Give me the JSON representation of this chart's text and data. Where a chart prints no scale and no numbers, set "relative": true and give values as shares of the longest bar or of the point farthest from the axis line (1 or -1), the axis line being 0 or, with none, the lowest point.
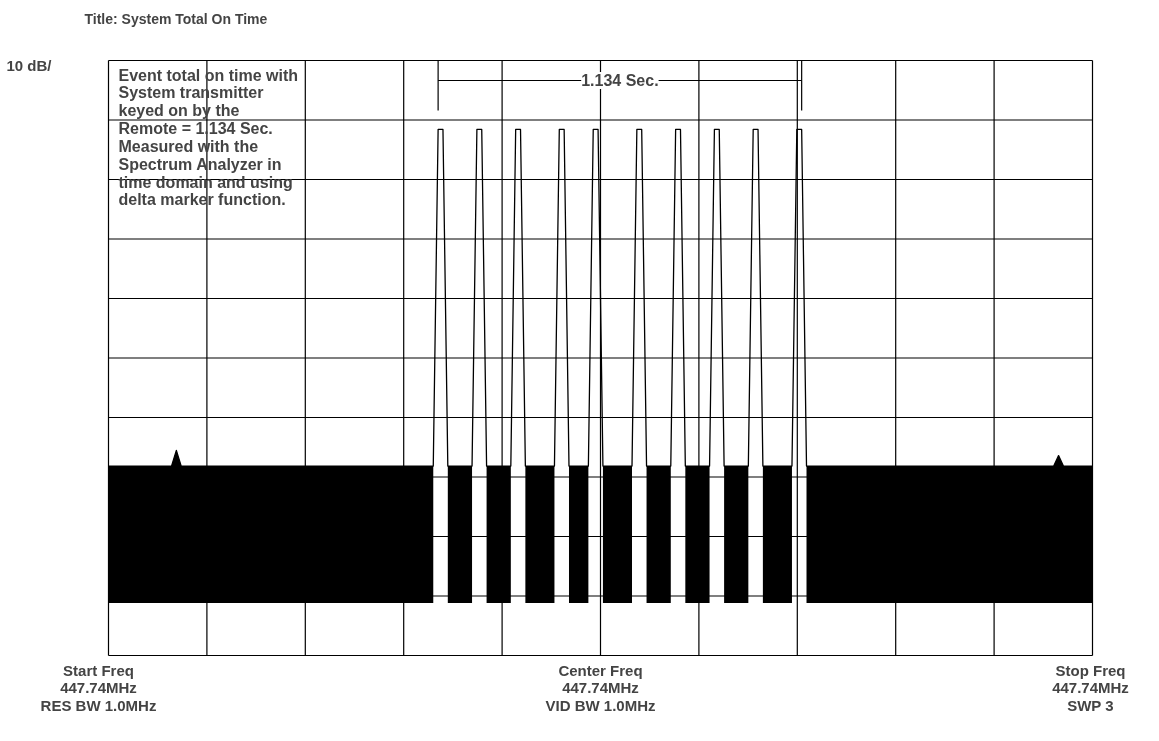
{
  "chart_data": {
    "type": "line",
    "relative": true,
    "title": "Title: System Total On Time",
    "grid": true,
    "marker": "none",
    "line_style": "solid",
    "categories": [
      null,
      null,
      null,
      null,
      null,
      null,
      null,
      null,
      null,
      null,
      null,
      null,
      null,
      null,
      null,
      null,
      null,
      null,
      null,
      null,
      null,
      null,
      null,
      null,
      null,
      null,
      null,
      null,
      null,
      null,
      null,
      null,
      null,
      null,
      null,
      null,
      null,
      null,
      null,
      null,
      null,
      null,
      null,
      null,
      null,
      null,
      null,
      null,
      null,
      null,
      null,
      null,
      null,
      null,
      null,
      null,
      null,
      null,
      null,
      null,
      null,
      null,
      null,
      null,
      null,
      null,
      null,
      null,
      null,
      null,
      null,
      null,
      null,
      null,
      null,
      null,
      null,
      null,
      null,
      null,
      null,
      null,
      null,
      null,
      null,
      null,
      null,
      null,
      null,
      null,
      null,
      null,
      null,
      null,
      null,
      null,
      null,
      null,
      null,
      null,
      null,
      null,
      null,
      null,
      null,
      null,
      null,
      null,
      null,
      null,
      null,
      null,
      null,
      null,
      null,
      null,
      null,
      null,
      null,
      null,
      null,
      null,
      null,
      null,
      null,
      null,
      null,
      null,
      null,
      null,
      null,
      null,
      null,
      null,
      null,
      null,
      null,
      null,
      null,
      null,
      null,
      null,
      null,
      null,
      null,
      null,
      null,
      null,
      null,
      null,
      null,
      null,
      null,
      null,
      null,
      null,
      null,
      null,
      null,
      null,
      null,
      null,
      null,
      null,
      null,
      null,
      null,
      null,
      null,
      null,
      null,
      null,
      null,
      null,
      null,
      null,
      null,
      null,
      null,
      null,
      null,
      null,
      null,
      null,
      null,
      null,
      null,
      null,
      null,
      null,
      null,
      null,
      null,
      null,
      null,
      null,
      null,
      null,
      null,
      null,
      null,
      null,
      null,
      null
    ],
    "series": [
      {
        "color": "#000000",
        "values": [
          0.36,
          0.36,
          0.36,
          0.36,
          0.36,
          0.36,
          0.36,
          0.36,
          0.36,
          0.36,
          0.36,
          0.36,
          0.36,
          0.36,
          0.39,
          0.36,
          0.36,
          0.36,
          0.36,
          0.36,
          0.36,
          0.36,
          0.36,
          0.36,
          0.36,
          0.36,
          0.36,
          0.36,
          0.36,
          0.36,
          0.36,
          0.36,
          0.36,
          0.36,
          0.36,
          0.36,
          0.36,
          0.36,
          0.36,
          0.36,
          0.36,
          0.36,
          0.36,
          0.36,
          0.36,
          0.36,
          0.36,
          0.36,
          0.36,
          0.36,
          0.36,
          0.36,
          0.36,
          0.36,
          0.36,
          0.36,
          0.36,
          0.36,
          0.36,
          0.36,
          0.36,
          0.36,
          0.36,
          0.36,
          0.36,
          0.36,
          0.36,
          0.36,
          1,
          1,
          0.36,
          0.36,
          0.36,
          0.36,
          0.36,
          0.36,
          1,
          1,
          0.36,
          0.36,
          0.36,
          0.36,
          0.36,
          0.36,
          1,
          1,
          0.36,
          0.36,
          0.36,
          0.36,
          0.36,
          0.36,
          0.36,
          1,
          1,
          0.36,
          0.36,
          0.36,
          0.36,
          0.36,
          1,
          1,
          0.36,
          0.36,
          0.36,
          0.36,
          0.36,
          0.36,
          0.36,
          1,
          1,
          0.36,
          0.36,
          0.36,
          0.36,
          0.36,
          0.36,
          1,
          1,
          0.36,
          0.36,
          0.36,
          0.36,
          0.36,
          0.36,
          1,
          1,
          0.36,
          0.36,
          0.36,
          0.36,
          0.36,
          0.36,
          1,
          1,
          0.36,
          0.36,
          0.36,
          0.36,
          0.36,
          0.36,
          0.36,
          1,
          1,
          0.36,
          0.36,
          0.36,
          0.36,
          0.36,
          0.36,
          0.36,
          0.36,
          0.36,
          0.36,
          0.36,
          0.36,
          0.36,
          0.36,
          0.36,
          0.36,
          0.36,
          0.36,
          0.36,
          0.36,
          0.36,
          0.36,
          0.36,
          0.36,
          0.36,
          0.36,
          0.36,
          0.36,
          0.36,
          0.36,
          0.36,
          0.36,
          0.36,
          0.36,
          0.36,
          0.36,
          0.36,
          0.36,
          0.36,
          0.36,
          0.36,
          0.36,
          0.36,
          0.36,
          0.36,
          0.36,
          0.36,
          0.36,
          0.36,
          0.36,
          0.36,
          0.36,
          0.38,
          0.36,
          0.36,
          0.36,
          0.36,
          0.36,
          0.36,
          0.36
        ],
        "upper": [
          0.36,
          0.36,
          0.36,
          0.36,
          0.36,
          0.36,
          0.36,
          0.36,
          0.36,
          0.36,
          0.36,
          0.36,
          0.36,
          0.36,
          0.39,
          0.36,
          0.36,
          0.36,
          0.36,
          0.36,
          0.36,
          0.36,
          0.36,
          0.36,
          0.36,
          0.36,
          0.36,
          0.36,
          0.36,
          0.36,
          0.36,
          0.36,
          0.36,
          0.36,
          0.36,
          0.36,
          0.36,
          0.36,
          0.36,
          0.36,
          0.36,
          0.36,
          0.36,
          0.36,
          0.36,
          0.36,
          0.36,
          0.36,
          0.36,
          0.36,
          0.36,
          0.36,
          0.36,
          0.36,
          0.36,
          0.36,
          0.36,
          0.36,
          0.36,
          0.36,
          0.36,
          0.36,
          0.36,
          0.36,
          0.36,
          0.36,
          0.36,
          0.36,
          null,
          null,
          0.36,
          0.36,
          0.36,
          0.36,
          0.36,
          0.36,
          null,
          null,
          0.36,
          0.36,
          0.36,
          0.36,
          0.36,
          0.36,
          null,
          null,
          0.36,
          0.36,
          0.36,
          0.36,
          0.36,
          0.36,
          0.36,
          null,
          null,
          0.36,
          0.36,
          0.36,
          0.36,
          0.36,
          null,
          null,
          0.36,
          0.36,
          0.36,
          0.36,
          0.36,
          0.36,
          0.36,
          null,
          null,
          0.36,
          0.36,
          0.36,
          0.36,
          0.36,
          0.36,
          null,
          null,
          0.36,
          0.36,
          0.36,
          0.36,
          0.36,
          0.36,
          null,
          null,
          0.36,
          0.36,
          0.36,
          0.36,
          0.36,
          0.36,
          null,
          null,
          0.36,
          0.36,
          0.36,
          0.36,
          0.36,
          0.36,
          0.36,
          null,
          null,
          0.36,
          0.36,
          0.36,
          0.36,
          0.36,
          0.36,
          0.36,
          0.36,
          0.36,
          0.36,
          0.36,
          0.36,
          0.36,
          0.36,
          0.36,
          0.36,
          0.36,
          0.36,
          0.36,
          0.36,
          0.36,
          0.36,
          0.36,
          0.36,
          0.36,
          0.36,
          0.36,
          0.36,
          0.36,
          0.36,
          0.36,
          0.36,
          0.36,
          0.36,
          0.36,
          0.36,
          0.36,
          0.36,
          0.36,
          0.36,
          0.36,
          0.36,
          0.36,
          0.36,
          0.36,
          0.36,
          0.36,
          0.36,
          0.36,
          0.36,
          0.36,
          0.36,
          0.38,
          0.36,
          0.36,
          0.36,
          0.36,
          0.36,
          0.36,
          0.36
        ],
        "lower": [
          0.1,
          0.1,
          0.1,
          0.1,
          0.1,
          0.1,
          0.1,
          0.1,
          0.1,
          0.1,
          0.1,
          0.1,
          0.1,
          0.1,
          0.1,
          0.1,
          0.1,
          0.1,
          0.1,
          0.1,
          0.1,
          0.1,
          0.1,
          0.1,
          0.1,
          0.1,
          0.1,
          0.1,
          0.1,
          0.1,
          0.1,
          0.1,
          0.1,
          0.1,
          0.1,
          0.1,
          0.1,
          0.1,
          0.1,
          0.1,
          0.1,
          0.1,
          0.1,
          0.1,
          0.1,
          0.1,
          0.1,
          0.1,
          0.1,
          0.1,
          0.1,
          0.1,
          0.1,
          0.1,
          0.1,
          0.1,
          0.1,
          0.1,
          0.1,
          0.1,
          0.1,
          0.1,
          0.1,
          0.1,
          0.1,
          0.1,
          0.1,
          0.1,
          null,
          null,
          0.1,
          0.1,
          0.1,
          0.1,
          0.1,
          0.1,
          null,
          null,
          0.1,
          0.1,
          0.1,
          0.1,
          0.1,
          0.1,
          null,
          null,
          0.1,
          0.1,
          0.1,
          0.1,
          0.1,
          0.1,
          0.1,
          null,
          null,
          0.1,
          0.1,
          0.1,
          0.1,
          0.1,
          null,
          null,
          0.1,
          0.1,
          0.1,
          0.1,
          0.1,
          0.1,
          0.1,
          null,
          null,
          0.1,
          0.1,
          0.1,
          0.1,
          0.1,
          0.1,
          null,
          null,
          0.1,
          0.1,
          0.1,
          0.1,
          0.1,
          0.1,
          null,
          null,
          0.1,
          0.1,
          0.1,
          0.1,
          0.1,
          0.1,
          null,
          null,
          0.1,
          0.1,
          0.1,
          0.1,
          0.1,
          0.1,
          0.1,
          null,
          null,
          0.1,
          0.1,
          0.1,
          0.1,
          0.1,
          0.1,
          0.1,
          0.1,
          0.1,
          0.1,
          0.1,
          0.1,
          0.1,
          0.1,
          0.1,
          0.1,
          0.1,
          0.1,
          0.1,
          0.1,
          0.1,
          0.1,
          0.1,
          0.1,
          0.1,
          0.1,
          0.1,
          0.1,
          0.1,
          0.1,
          0.1,
          0.1,
          0.1,
          0.1,
          0.1,
          0.1,
          0.1,
          0.1,
          0.1,
          0.1,
          0.1,
          0.1,
          0.1,
          0.1,
          0.1,
          0.1,
          0.1,
          0.1,
          0.1,
          0.1,
          0.1,
          0.1,
          0.1,
          0.1,
          0.1,
          0.1,
          0.1,
          0.1,
          0.1,
          0.1
        ]
      }
    ],
    "annotations": [
      "10 dB/",
      "Event total on time with\nSystem transmitter\nkeyed on by the\nRemote = 1.134 Sec.\nMeasured with the\nSpectrum Analyzer in\ntime domain and using\ndelta marker function.",
      "1.134 Sec.",
      "Start Freq\n447.74MHz\nRES BW 1.0MHz",
      "Center Freq\n447.74MHz\nVID BW 1.0MHz",
      "Stop Freq\n447.74MHz\nSWP 3"
    ]
  }
}
